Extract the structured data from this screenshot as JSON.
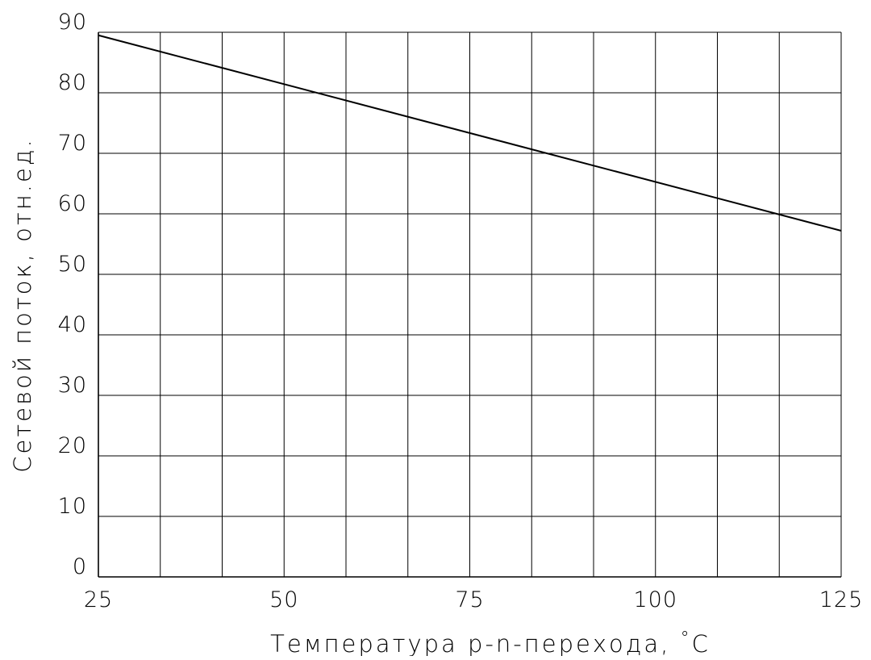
{
  "chart_data": {
    "type": "line",
    "title": "",
    "xlabel": "Температура p-n-перехода, ",
    "xlabel_unit": "°C",
    "ylabel": "Сетевой поток, отн.ед.",
    "xlim": [
      25,
      125
    ],
    "ylim": [
      0,
      90
    ],
    "x_ticks": [
      "25",
      "50",
      "75",
      "100",
      "125"
    ],
    "y_ticks": [
      "0",
      "10",
      "20",
      "30",
      "40",
      "50",
      "60",
      "70",
      "80",
      "90"
    ],
    "x_grid_step": 8.333,
    "y_grid_step": 10,
    "grid": true,
    "legend": "none",
    "series": [
      {
        "x": [
          25,
          125
        ],
        "y": [
          89.5,
          57.2
        ]
      }
    ],
    "colors": {
      "line": "#000000",
      "grid": "#000000",
      "background": "#ffffff"
    }
  }
}
